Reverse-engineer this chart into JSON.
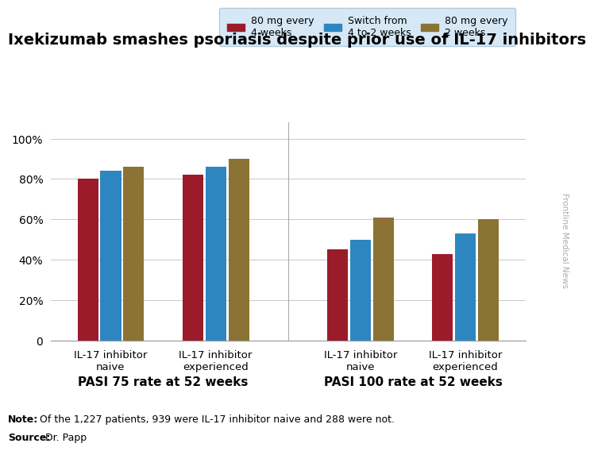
{
  "title": "Ixekizumab smashes psoriasis despite prior use of IL-17 inhibitors",
  "groups": [
    {
      "label": "IL-17 inhibitor\nnaive",
      "values": [
        0.8,
        0.84,
        0.86
      ]
    },
    {
      "label": "IL-17 inhibitor\nexperienced",
      "values": [
        0.82,
        0.86,
        0.9
      ]
    },
    {
      "label": "IL-17 inhibitor\nnaive",
      "values": [
        0.45,
        0.5,
        0.61
      ]
    },
    {
      "label": "IL-17 inhibitor\nexperienced",
      "values": [
        0.43,
        0.53,
        0.6
      ]
    }
  ],
  "series_labels": [
    "80 mg every\n4 weeks",
    "Switch from\n4 to 2 weeks",
    "80 mg every\n2 weeks"
  ],
  "series_colors": [
    "#9B1B2A",
    "#2E86C1",
    "#8B7335"
  ],
  "bar_width": 0.23,
  "group_positions": [
    0.5,
    1.55,
    3.0,
    4.05
  ],
  "section_labels": [
    "PASI 75 rate at 52 weeks",
    "PASI 100 rate at 52 weeks"
  ],
  "section_centers": [
    1.025,
    3.525
  ],
  "yticks": [
    0.0,
    0.2,
    0.4,
    0.6,
    0.8,
    1.0
  ],
  "ytick_labels": [
    "0",
    "20%",
    "40%",
    "60%",
    "80%",
    "100%"
  ],
  "xlim": [
    -0.1,
    4.65
  ],
  "ylim": [
    0,
    1.08
  ],
  "note_bold": "Note:",
  "note_text": " Of the 1,227 patients, 939 were IL-17 inhibitor naive and 288 were not.",
  "source_bold": "Source:",
  "source_text": " Dr. Papp",
  "watermark": "Frontline Medical News",
  "legend_bg_color": "#D6E8F5",
  "legend_edge_color": "#B0CCE0",
  "background_color": "#FFFFFF",
  "grid_color": "#CCCCCC",
  "title_fontsize": 14,
  "bar_label_fontsize": 9.5,
  "legend_fontsize": 9,
  "tick_fontsize": 10,
  "section_fontsize": 11,
  "note_fontsize": 9,
  "watermark_color": "#AAAAAA"
}
